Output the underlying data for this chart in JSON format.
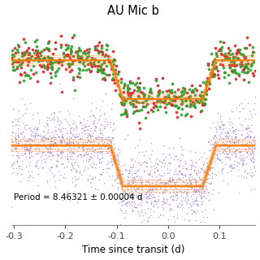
{
  "title": "AU Mic b",
  "xlabel": "Time since transit (d)",
  "period_text": "Period = 8.46321 ± 0.00004 d",
  "xlim": [
    -0.305,
    0.17
  ],
  "ylim": [
    -0.085,
    0.022
  ],
  "tess_baseline": 0.0,
  "tess_depth": -0.02,
  "spitzer_baseline": -0.044,
  "spitzer_depth": -0.021,
  "transit_t1": -0.112,
  "transit_t2": -0.088,
  "transit_t3": 0.067,
  "transit_t4": 0.093,
  "color_red": "#d62728",
  "color_green": "#2ca02c",
  "color_purple": "#9467bd",
  "color_orange": "#ff7f0e",
  "bg_color": "#ffffff",
  "n_tess": 700,
  "n_spitzer": 2000,
  "tess_noise": 0.005,
  "spitzer_noise": 0.009,
  "seed": 7
}
